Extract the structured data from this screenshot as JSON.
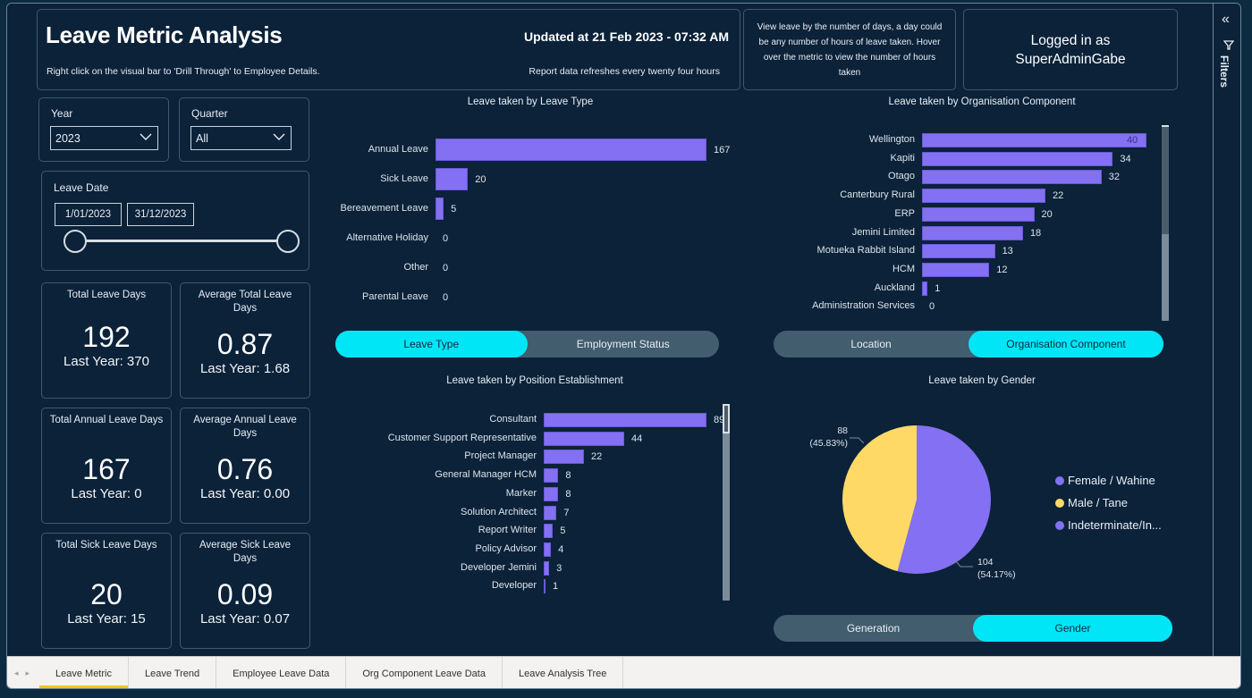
{
  "header": {
    "title": "Leave Metric Analysis",
    "subtitle": "Right click on the visual bar to 'Drill Through' to Employee Details.",
    "updated": "Updated at 21 Feb 2023 - 07:32 AM",
    "refresh_note": "Report data refreshes every twenty four hours"
  },
  "info_text": "View leave by the number of days, a day could be any number of hours of leave taken. Hover over the metric to view the number of hours taken",
  "login": {
    "line1": "Logged in as",
    "line2": "SuperAdminGabe"
  },
  "slicers": {
    "year": {
      "label": "Year",
      "value": "2023"
    },
    "quarter": {
      "label": "Quarter",
      "value": "All"
    },
    "leave_date": {
      "label": "Leave Date",
      "start": "1/01/2023",
      "end": "31/12/2023",
      "range_start_fraction": 0,
      "range_end_fraction": 1
    }
  },
  "kpis": [
    {
      "title": "Total Leave Days",
      "value": "192",
      "last_year": "Last Year: 370"
    },
    {
      "title": "Average Total Leave Days",
      "value": "0.87",
      "last_year": "Last Year: 1.68"
    },
    {
      "title": "Total Annual Leave Days",
      "value": "167",
      "last_year": "Last Year: 0"
    },
    {
      "title": "Average Annual Leave Days",
      "value": "0.76",
      "last_year": "Last Year: 0.00"
    },
    {
      "title": "Total Sick Leave Days",
      "value": "20",
      "last_year": "Last Year: 15"
    },
    {
      "title": "Average Sick Leave Days",
      "value": "0.09",
      "last_year": "Last Year: 0.07"
    }
  ],
  "toggles": {
    "leave_type": [
      {
        "label": "Leave Type",
        "active": true
      },
      {
        "label": "Employment Status",
        "active": false
      }
    ],
    "org": [
      {
        "label": "Location",
        "active": false
      },
      {
        "label": "Organisation Component",
        "active": true
      }
    ],
    "gender": [
      {
        "label": "Generation",
        "active": false
      },
      {
        "label": "Gender",
        "active": true
      }
    ]
  },
  "filters_pane": {
    "label": "Filters",
    "collapse_icon": "double-chevron-left-icon",
    "filter_icon": "funnel-icon"
  },
  "tabs": [
    {
      "label": "Leave Metric",
      "active": true
    },
    {
      "label": "Leave Trend",
      "active": false
    },
    {
      "label": "Employee Leave Data",
      "active": false
    },
    {
      "label": "Org Component Leave Data",
      "active": false
    },
    {
      "label": "Leave Analysis Tree",
      "active": false
    }
  ],
  "colors": {
    "bar": "#8470f2",
    "female": "#8470f2",
    "male": "#ffd966",
    "indeterminate": "#8470f2",
    "toggle_active": "#00e6f6",
    "tab_underline": "#f2c811"
  },
  "chart_data": [
    {
      "id": "leave_type",
      "type": "bar",
      "orientation": "horizontal",
      "title": "Leave taken by Leave Type",
      "categories": [
        "Annual Leave",
        "Sick Leave",
        "Bereavement Leave",
        "Alternative Holiday",
        "Other",
        "Parental Leave"
      ],
      "values": [
        167,
        20,
        5,
        0,
        0,
        0
      ],
      "data_labels": true
    },
    {
      "id": "org_component",
      "type": "bar",
      "orientation": "horizontal",
      "title": "Leave taken by Organisation Component",
      "categories": [
        "Wellington",
        "Kapiti",
        "Otago",
        "Canterbury Rural",
        "ERP",
        "Jemini Limited",
        "Motueka Rabbit Island",
        "HCM",
        "Auckland",
        "Administration Services"
      ],
      "values": [
        40,
        34,
        32,
        22,
        20,
        18,
        13,
        12,
        1,
        0
      ],
      "data_labels": true,
      "scrollable": true
    },
    {
      "id": "position",
      "type": "bar",
      "orientation": "horizontal",
      "title": "Leave taken by Position Establishment",
      "categories": [
        "Consultant",
        "Customer Support Representative",
        "Project Manager",
        "General Manager HCM",
        "Marker",
        "Solution Architect",
        "Report Writer",
        "Policy Advisor",
        "Developer Jemini",
        "Developer"
      ],
      "values": [
        89,
        44,
        22,
        8,
        8,
        7,
        5,
        4,
        3,
        1
      ],
      "data_labels": true,
      "scrollable": true
    },
    {
      "id": "gender",
      "type": "pie",
      "title": "Leave taken by Gender",
      "slices": [
        {
          "label": "Female / Wahine",
          "value": 104,
          "percent": "54.17%",
          "color": "#8470f2"
        },
        {
          "label": "Male / Tane",
          "value": 88,
          "percent": "45.83%",
          "color": "#ffd966"
        },
        {
          "label": "Indeterminate/In...",
          "value": 0,
          "percent": "0%",
          "color": "#8470f2"
        }
      ],
      "data_labels": [
        "104\n(54.17%)",
        "88\n(45.83%)"
      ],
      "legend_position": "right"
    }
  ]
}
